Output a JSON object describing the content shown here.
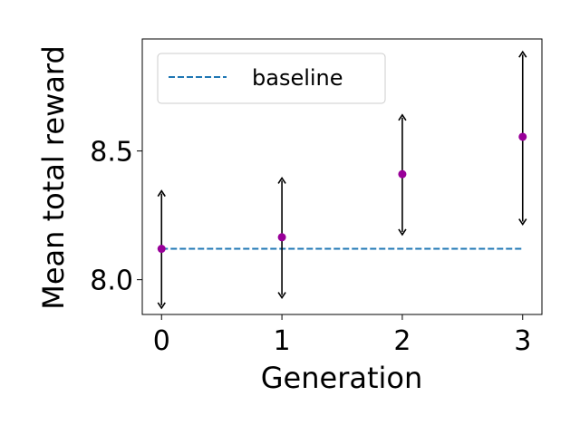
{
  "chart_data": {
    "type": "scatter",
    "title": "",
    "xlabel": "Generation",
    "ylabel": "Mean total reward",
    "xlim": [
      -0.16,
      3.16
    ],
    "ylim": [
      7.865,
      8.935
    ],
    "xticks": [
      0,
      1,
      2,
      3
    ],
    "yticks": [
      8.0,
      8.5
    ],
    "ytick_labels": [
      "8.0",
      "8.5"
    ],
    "grid": false,
    "legend_position": "top-left",
    "series": [
      {
        "type": "errorbar",
        "color": "#990099",
        "x": [
          0,
          1,
          2,
          3
        ],
        "y": [
          8.12,
          8.165,
          8.41,
          8.555
        ],
        "y_low": [
          7.89,
          7.93,
          8.175,
          8.215
        ],
        "y_high": [
          8.345,
          8.395,
          8.64,
          8.885
        ]
      },
      {
        "type": "line",
        "name": "baseline",
        "style": "dashed",
        "color": "#1f77b4",
        "x": [
          0,
          3
        ],
        "y": [
          8.12,
          8.12
        ]
      }
    ]
  }
}
